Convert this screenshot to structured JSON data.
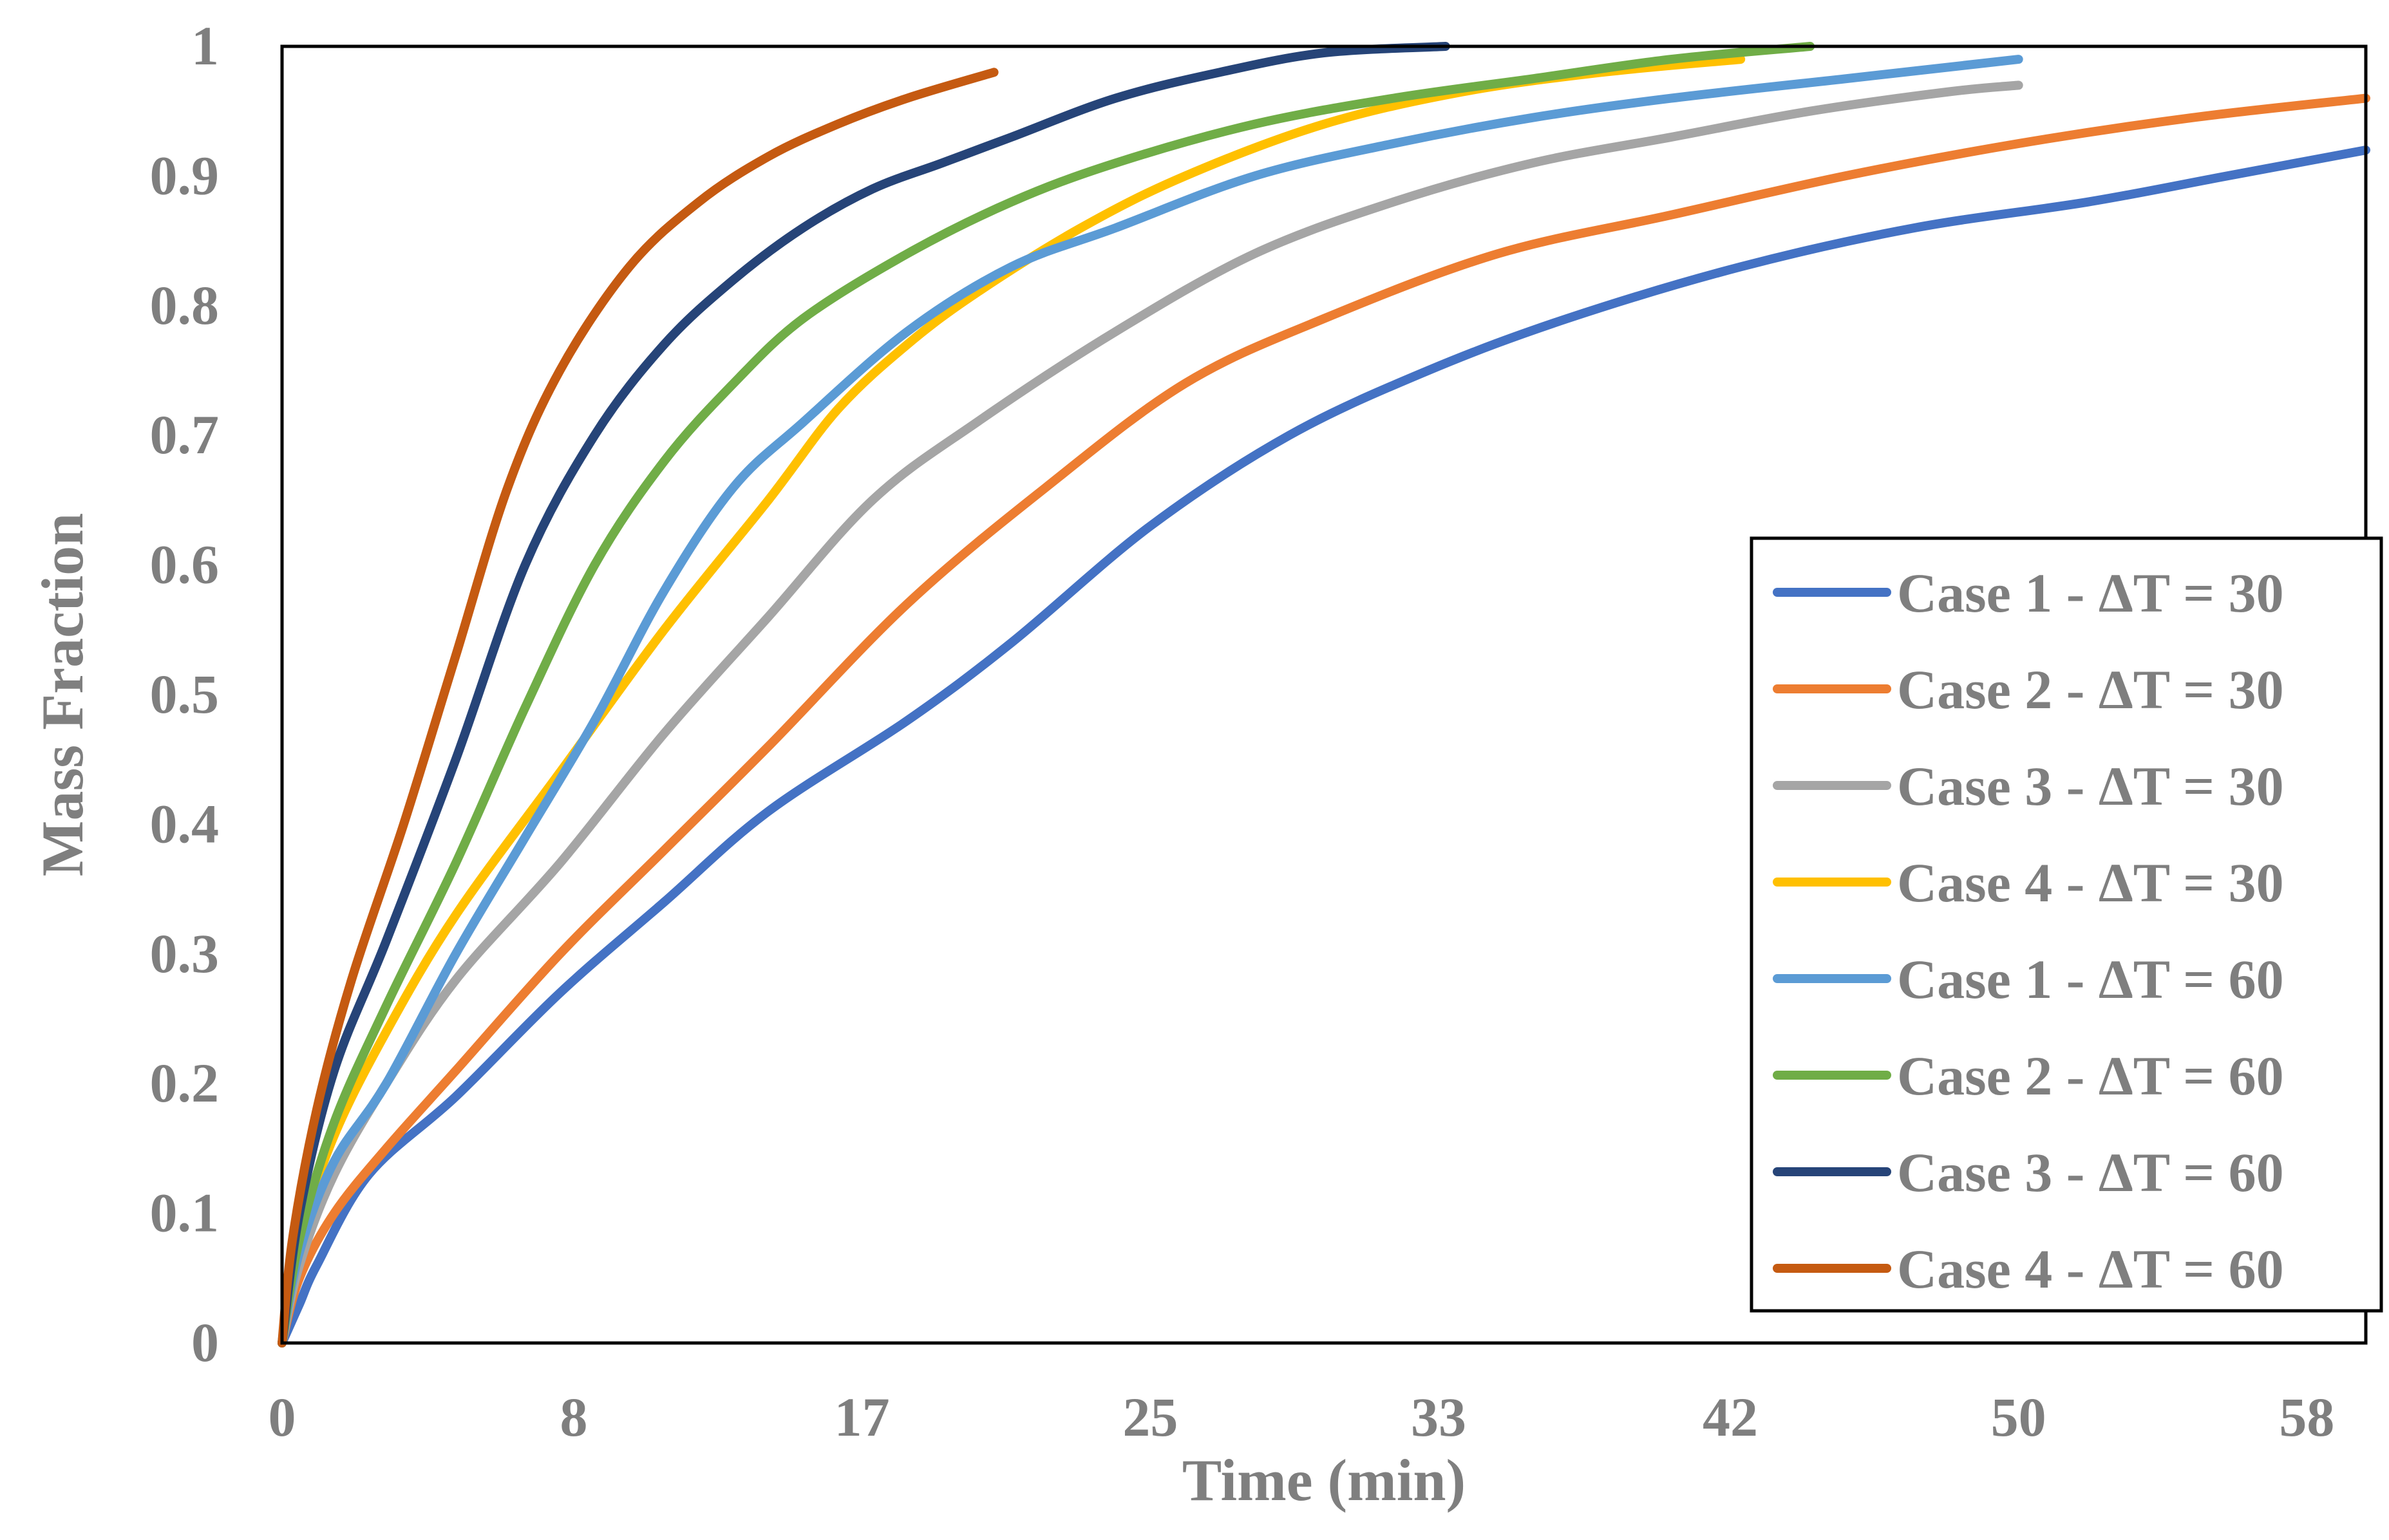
{
  "chart_data": {
    "type": "line",
    "title": "",
    "xlabel": "Time (min)",
    "ylabel": "Mass Fraction",
    "xlim": [
      0,
      60
    ],
    "ylim": [
      0,
      1
    ],
    "x_tick_labels": [
      "0",
      "8",
      "17",
      "25",
      "33",
      "42",
      "50",
      "58"
    ],
    "x_tick_values": [
      0,
      8.4,
      16.7,
      25,
      33.3,
      41.7,
      50,
      58.3
    ],
    "y_ticks": [
      0,
      0.1,
      0.2,
      0.3,
      0.4,
      0.5,
      0.6,
      0.7,
      0.8,
      0.9,
      1
    ],
    "y_tick_labels": [
      "0",
      "0.1",
      "0.2",
      "0.3",
      "0.4",
      "0.5",
      "0.6",
      "0.7",
      "0.8",
      "0.9",
      "1"
    ],
    "legend_position": "bottom-right",
    "series": [
      {
        "name": "Case 1 - ΔT = 30",
        "color": "#4472C4",
        "x": [
          0,
          0.5,
          1,
          2.5,
          5,
          8,
          11,
          14,
          18,
          21,
          25,
          29,
          33,
          37,
          42,
          47,
          52,
          56,
          60
        ],
        "y": [
          0,
          0.03,
          0.06,
          0.13,
          0.19,
          0.27,
          0.34,
          0.41,
          0.48,
          0.54,
          0.63,
          0.7,
          0.75,
          0.79,
          0.83,
          0.86,
          0.88,
          0.9,
          0.92
        ]
      },
      {
        "name": "Case 2 - ΔT = 30",
        "color": "#ED7D31",
        "x": [
          0,
          0.5,
          1.5,
          3,
          5,
          8,
          11,
          14,
          18,
          22,
          26,
          30,
          35,
          40,
          45,
          50,
          55,
          60
        ],
        "y": [
          0,
          0.05,
          0.1,
          0.15,
          0.21,
          0.3,
          0.38,
          0.46,
          0.57,
          0.66,
          0.74,
          0.79,
          0.84,
          0.87,
          0.9,
          0.925,
          0.945,
          0.96
        ]
      },
      {
        "name": "Case 3 - ΔT = 30",
        "color": "#A5A5A5",
        "x": [
          0,
          0.5,
          1.5,
          3,
          5,
          8,
          11,
          14,
          17,
          20,
          24,
          28,
          32,
          36,
          40,
          44,
          48,
          50
        ],
        "y": [
          0,
          0.06,
          0.13,
          0.2,
          0.28,
          0.37,
          0.47,
          0.56,
          0.65,
          0.71,
          0.78,
          0.84,
          0.88,
          0.91,
          0.93,
          0.95,
          0.965,
          0.97
        ]
      },
      {
        "name": "Case 4 - ΔT = 30",
        "color": "#FFC000",
        "x": [
          0,
          0.5,
          1.5,
          3,
          5,
          8,
          11,
          14,
          16,
          18,
          20,
          23,
          26,
          30,
          34,
          38,
          42
        ],
        "y": [
          0,
          0.08,
          0.16,
          0.24,
          0.33,
          0.44,
          0.55,
          0.65,
          0.72,
          0.77,
          0.81,
          0.86,
          0.9,
          0.94,
          0.965,
          0.98,
          0.99
        ]
      },
      {
        "name": "Case 1 - ΔT = 60",
        "color": "#5B9BD5",
        "x": [
          0,
          0.5,
          1.5,
          3,
          5,
          7,
          9,
          11,
          13,
          15,
          18,
          21,
          24,
          28,
          32,
          36,
          40,
          45,
          50
        ],
        "y": [
          0,
          0.07,
          0.14,
          0.2,
          0.3,
          0.39,
          0.48,
          0.58,
          0.66,
          0.71,
          0.78,
          0.83,
          0.86,
          0.9,
          0.925,
          0.945,
          0.96,
          0.975,
          0.99
        ]
      },
      {
        "name": "Case 2 - ΔT = 60",
        "color": "#70AD47",
        "x": [
          0,
          0.5,
          1.5,
          3,
          5,
          7,
          9,
          11,
          13,
          15,
          18,
          21,
          24,
          28,
          32,
          36,
          40,
          44
        ],
        "y": [
          0,
          0.08,
          0.17,
          0.26,
          0.37,
          0.49,
          0.6,
          0.68,
          0.74,
          0.79,
          0.84,
          0.88,
          0.91,
          0.94,
          0.96,
          0.975,
          0.99,
          1.0
        ]
      },
      {
        "name": "Case 3 - ΔT = 60",
        "color": "#264478",
        "x": [
          0,
          0.5,
          1.5,
          3,
          5,
          7,
          9,
          11,
          13,
          15,
          17,
          19,
          21,
          24,
          27,
          30,
          33.5
        ],
        "y": [
          0,
          0.1,
          0.21,
          0.31,
          0.45,
          0.6,
          0.7,
          0.77,
          0.82,
          0.86,
          0.89,
          0.91,
          0.93,
          0.96,
          0.98,
          0.995,
          1.0
        ]
      },
      {
        "name": "Case 4 - ΔT = 60",
        "color": "#C55A11",
        "x": [
          0,
          0.3,
          1,
          2,
          3.5,
          5,
          6.5,
          8,
          10,
          12,
          14,
          16,
          18,
          20.5
        ],
        "y": [
          0,
          0.08,
          0.18,
          0.28,
          0.4,
          0.53,
          0.66,
          0.75,
          0.83,
          0.88,
          0.915,
          0.94,
          0.96,
          0.98
        ]
      }
    ]
  }
}
